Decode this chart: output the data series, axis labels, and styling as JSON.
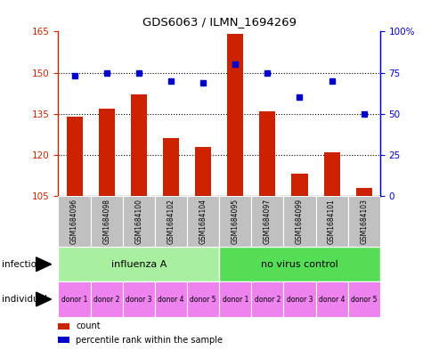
{
  "title": "GDS6063 / ILMN_1694269",
  "samples": [
    "GSM1684096",
    "GSM1684098",
    "GSM1684100",
    "GSM1684102",
    "GSM1684104",
    "GSM1684095",
    "GSM1684097",
    "GSM1684099",
    "GSM1684101",
    "GSM1684103"
  ],
  "counts": [
    134,
    137,
    142,
    126,
    123,
    164,
    136,
    113,
    121,
    108
  ],
  "percentiles": [
    73,
    75,
    75,
    70,
    69,
    80,
    75,
    60,
    70,
    50
  ],
  "ylim_left": [
    105,
    165
  ],
  "ylim_right": [
    0,
    100
  ],
  "yticks_left": [
    105,
    120,
    135,
    150,
    165
  ],
  "yticks_right": [
    0,
    25,
    50,
    75,
    100
  ],
  "donors": [
    "donor 1",
    "donor 2",
    "donor 3",
    "donor 4",
    "donor 5",
    "donor 1",
    "donor 2",
    "donor 3",
    "donor 4",
    "donor 5"
  ],
  "bar_color": "#CC2200",
  "dot_color": "#0000CC",
  "sample_bg_color": "#C0C0C0",
  "background_color": "#FFFFFF",
  "left_tick_color": "#CC2200",
  "right_tick_color": "#0000CC",
  "inf_color_left": "#A8F0A0",
  "inf_color_right": "#55DD55",
  "donor_color": "#EE82EE"
}
